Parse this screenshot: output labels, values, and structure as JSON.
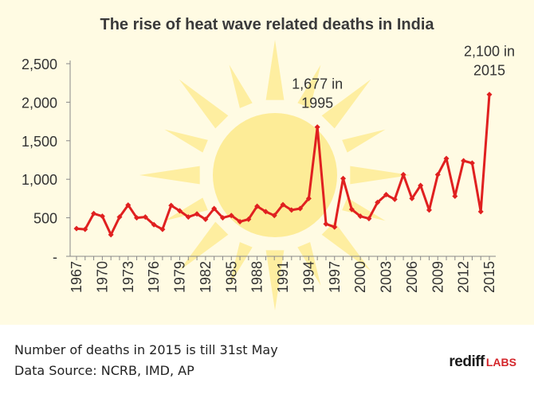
{
  "chart_data": {
    "type": "line",
    "title": "The rise of heat wave related deaths in India",
    "xlabel": "",
    "ylabel": "",
    "ylim": [
      0,
      2500
    ],
    "yticks": [
      0,
      500,
      1000,
      1500,
      2000,
      2500
    ],
    "ytick_labels": [
      "-",
      "500",
      "1,000",
      "1,500",
      "2,000",
      "2,500"
    ],
    "xtick_labels": [
      "1967",
      "1970",
      "1973",
      "1976",
      "1979",
      "1982",
      "1985",
      "1988",
      "1991",
      "1994",
      "1997",
      "2000",
      "2003",
      "2006",
      "2009",
      "2012",
      "2015"
    ],
    "series": [
      {
        "name": "Heat wave related deaths",
        "color": "#e02020",
        "x": [
          1967,
          1968,
          1969,
          1970,
          1971,
          1972,
          1973,
          1974,
          1975,
          1976,
          1977,
          1978,
          1979,
          1980,
          1981,
          1982,
          1983,
          1984,
          1985,
          1986,
          1987,
          1988,
          1989,
          1990,
          1991,
          1992,
          1993,
          1994,
          1995,
          1996,
          1997,
          1998,
          1999,
          2000,
          2001,
          2002,
          2003,
          2004,
          2005,
          2006,
          2007,
          2008,
          2009,
          2010,
          2011,
          2012,
          2013,
          2014,
          2015
        ],
        "values": [
          360,
          350,
          555,
          520,
          280,
          510,
          665,
          500,
          510,
          410,
          350,
          660,
          590,
          510,
          550,
          480,
          620,
          500,
          530,
          450,
          480,
          650,
          580,
          530,
          670,
          600,
          620,
          750,
          1677,
          420,
          380,
          1010,
          610,
          520,
          490,
          700,
          800,
          740,
          1060,
          750,
          920,
          600,
          1060,
          1270,
          780,
          1240,
          1210,
          580,
          2100
        ]
      }
    ],
    "annotations": [
      {
        "text_line1": "1,677 in",
        "text_line2": "1995",
        "x": 1995,
        "y": 1677
      },
      {
        "text_line1": "2,100 in",
        "text_line2": "2015",
        "x": 2015,
        "y": 2100
      }
    ]
  },
  "footer": {
    "note_line1": "Number of deaths in 2015 is till 31st May",
    "note_line2": "Data Source: NCRB, IMD, AP",
    "brand_main": "rediff",
    "brand_sub": "LABS"
  },
  "colors": {
    "line": "#e02020",
    "sun": "#fde98a",
    "grid": "#999999"
  }
}
